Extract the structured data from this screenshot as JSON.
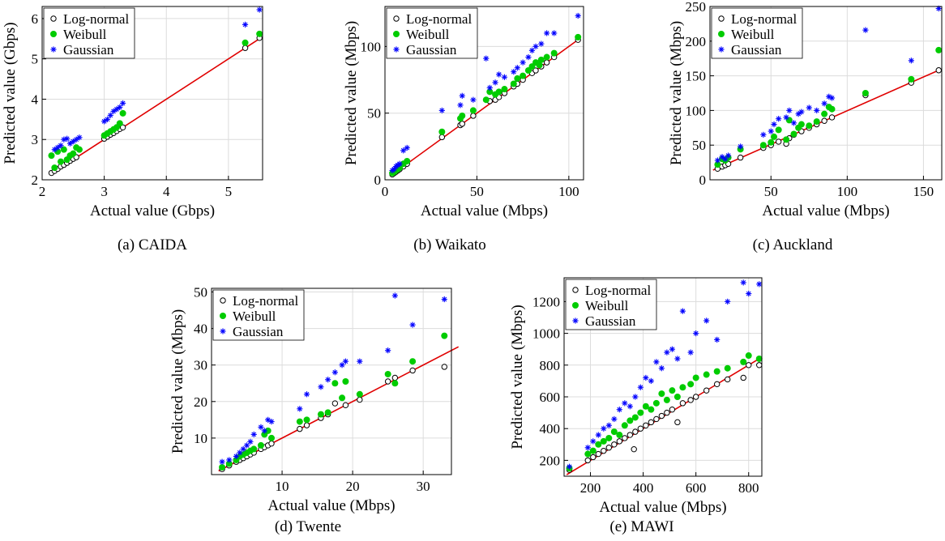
{
  "chart_data": [
    {
      "type": "scatter",
      "caption": "(a) CAIDA",
      "xlabel": "Actual value (Gbps)",
      "ylabel": "Predicted value (Gbps)",
      "xlim": [
        2,
        5.55
      ],
      "ylim": [
        2,
        6.3
      ],
      "xticks": [
        2,
        3,
        4,
        5
      ],
      "yticks": [
        2,
        3,
        4,
        5,
        6
      ],
      "grid": true,
      "legend_position": "top-left",
      "fit_line": [
        [
          2.15,
          2.15
        ],
        [
          5.5,
          5.5
        ]
      ],
      "series": [
        {
          "name": "Log-normal",
          "marker": "circle-open",
          "color": "#000000",
          "x": [
            2.15,
            2.2,
            2.25,
            2.3,
            2.35,
            2.4,
            2.45,
            2.5,
            2.55,
            3.0,
            3.05,
            3.1,
            3.15,
            3.2,
            3.25,
            3.3,
            5.27,
            5.5
          ],
          "y": [
            2.17,
            2.22,
            2.27,
            2.33,
            2.37,
            2.42,
            2.47,
            2.52,
            2.56,
            3.02,
            3.07,
            3.12,
            3.16,
            3.21,
            3.26,
            3.3,
            5.27,
            5.52
          ]
        },
        {
          "name": "Weibull",
          "marker": "circle-filled",
          "color": "#00cc00",
          "x": [
            2.15,
            2.2,
            2.25,
            2.3,
            2.35,
            2.4,
            2.45,
            2.5,
            2.55,
            2.6,
            3.0,
            3.05,
            3.1,
            3.15,
            3.2,
            3.25,
            3.3,
            5.27,
            5.5
          ],
          "y": [
            2.6,
            2.3,
            2.7,
            2.45,
            2.75,
            2.5,
            2.6,
            2.65,
            2.8,
            2.75,
            3.1,
            3.15,
            3.2,
            3.25,
            3.3,
            3.4,
            3.65,
            5.4,
            5.62
          ]
        },
        {
          "name": "Gaussian",
          "marker": "asterisk",
          "color": "#0000ff",
          "x": [
            2.2,
            2.25,
            2.3,
            2.35,
            2.4,
            2.45,
            2.5,
            2.55,
            2.6,
            3.0,
            3.05,
            3.1,
            3.15,
            3.2,
            3.25,
            3.3,
            5.27,
            5.5
          ],
          "y": [
            2.75,
            2.8,
            2.85,
            3.0,
            3.02,
            2.9,
            2.95,
            3.0,
            3.05,
            3.45,
            3.5,
            3.6,
            3.7,
            3.75,
            3.8,
            3.9,
            5.85,
            6.22
          ]
        }
      ]
    },
    {
      "type": "scatter",
      "caption": "(b) Waikato",
      "xlabel": "Actual value (Mbps)",
      "ylabel": "Predicted value (Mbps)",
      "xlim": [
        0,
        108
      ],
      "ylim": [
        0,
        130
      ],
      "xticks": [
        0,
        50,
        100
      ],
      "yticks": [
        0,
        50,
        100
      ],
      "grid": true,
      "legend_position": "top-left",
      "fit_line": [
        [
          3,
          3
        ],
        [
          106,
          106
        ]
      ],
      "series": [
        {
          "name": "Log-normal",
          "marker": "circle-open",
          "color": "#000000",
          "x": [
            4,
            5,
            6,
            7,
            8,
            10,
            12,
            31,
            41,
            42,
            48,
            57,
            60,
            62,
            65,
            70,
            72,
            75,
            80,
            82,
            85,
            88,
            92,
            105
          ],
          "y": [
            4,
            5,
            6,
            7,
            8,
            10,
            12,
            32,
            41,
            42,
            48,
            59,
            60,
            62,
            65,
            70,
            72,
            75,
            80,
            82,
            85,
            88,
            92,
            105
          ]
        },
        {
          "name": "Weibull",
          "marker": "circle-filled",
          "color": "#00cc00",
          "x": [
            4,
            5,
            6,
            7,
            8,
            10,
            12,
            31,
            41,
            42,
            48,
            55,
            57,
            60,
            62,
            65,
            70,
            72,
            75,
            78,
            80,
            82,
            84,
            85,
            88,
            92,
            105
          ],
          "y": [
            5,
            6,
            7,
            8,
            9,
            12,
            14,
            36,
            46,
            48,
            52,
            60,
            66,
            64,
            66,
            68,
            72,
            76,
            78,
            82,
            85,
            88,
            86,
            90,
            92,
            95,
            107
          ]
        },
        {
          "name": "Gaussian",
          "marker": "asterisk",
          "color": "#0000ff",
          "x": [
            4,
            5,
            6,
            7,
            8,
            10,
            12,
            31,
            41,
            42,
            48,
            55,
            57,
            60,
            62,
            65,
            70,
            72,
            75,
            78,
            80,
            82,
            85,
            88,
            92,
            105
          ],
          "y": [
            7,
            8,
            10,
            11,
            12,
            22,
            24,
            52,
            56,
            63,
            60,
            91,
            69,
            73,
            79,
            77,
            81,
            84,
            88,
            92,
            97,
            100,
            102,
            110,
            110,
            123
          ]
        }
      ]
    },
    {
      "type": "scatter",
      "caption": "(c) Auckland",
      "xlabel": "Actual value (Mbps)",
      "ylabel": "Predicted value (Mbps)",
      "xlim": [
        10,
        162
      ],
      "ylim": [
        0,
        250
      ],
      "xticks": [
        50,
        100,
        150
      ],
      "yticks": [
        0,
        50,
        100,
        150,
        200,
        250
      ],
      "grid": true,
      "legend_position": "top-left",
      "fit_line": [
        [
          12,
          14
        ],
        [
          160,
          158
        ]
      ],
      "series": [
        {
          "name": "Log-normal",
          "marker": "circle-open",
          "color": "#000000",
          "x": [
            15,
            18,
            20,
            22,
            30,
            45,
            50,
            55,
            60,
            62,
            65,
            70,
            75,
            80,
            85,
            90,
            112,
            142,
            160
          ],
          "y": [
            16,
            19,
            21,
            23,
            32,
            46,
            50,
            55,
            52,
            60,
            65,
            70,
            75,
            80,
            85,
            90,
            122,
            140,
            158
          ]
        },
        {
          "name": "Weibull",
          "marker": "circle-filled",
          "color": "#00cc00",
          "x": [
            15,
            18,
            20,
            22,
            30,
            45,
            50,
            52,
            55,
            60,
            62,
            65,
            68,
            70,
            75,
            80,
            85,
            88,
            90,
            112,
            142,
            160
          ],
          "y": [
            22,
            30,
            28,
            32,
            44,
            50,
            54,
            62,
            72,
            58,
            86,
            66,
            75,
            80,
            78,
            84,
            95,
            105,
            102,
            125,
            145,
            187
          ]
        },
        {
          "name": "Gaussian",
          "marker": "asterisk",
          "color": "#0000ff",
          "x": [
            15,
            18,
            20,
            22,
            30,
            45,
            50,
            52,
            55,
            60,
            62,
            65,
            68,
            70,
            75,
            80,
            85,
            88,
            90,
            112,
            142,
            160
          ],
          "y": [
            28,
            33,
            30,
            35,
            48,
            65,
            70,
            80,
            88,
            90,
            100,
            82,
            95,
            98,
            104,
            100,
            110,
            120,
            118,
            216,
            172,
            247
          ]
        }
      ]
    },
    {
      "type": "scatter",
      "caption": "(d) Twente",
      "xlabel": "Actual value (Mbps)",
      "ylabel": "Predicted value (Mbps)",
      "xlim": [
        0,
        34
      ],
      "ylim": [
        0,
        51
      ],
      "xticks": [
        10,
        20,
        30
      ],
      "yticks": [
        10,
        20,
        30,
        40,
        50
      ],
      "grid": true,
      "legend_position": "top-left",
      "fit_line": [
        [
          1,
          1
        ],
        [
          35,
          35
        ]
      ],
      "series": [
        {
          "name": "Log-normal",
          "marker": "circle-open",
          "color": "#000000",
          "x": [
            1.5,
            2.5,
            3.5,
            4,
            4.5,
            5,
            5.5,
            6,
            7,
            7.5,
            8,
            8.5,
            12.5,
            13.5,
            15.5,
            16.5,
            17.5,
            19,
            21,
            25,
            26,
            28.5,
            33
          ],
          "y": [
            1.5,
            2.5,
            3.5,
            4,
            4.5,
            5,
            5.5,
            6,
            7,
            7.5,
            8,
            8.5,
            12.5,
            13.5,
            15.5,
            16.5,
            19.5,
            19,
            20.5,
            25.5,
            26.5,
            28.5,
            29.5
          ]
        },
        {
          "name": "Weibull",
          "marker": "circle-filled",
          "color": "#00cc00",
          "x": [
            1.5,
            2.5,
            3.5,
            4,
            4.5,
            5,
            5.5,
            6,
            7,
            7.5,
            8,
            8.5,
            12.5,
            13.5,
            15.5,
            16.5,
            17.5,
            18.5,
            19,
            21,
            25,
            26,
            28.5,
            33
          ],
          "y": [
            2,
            3,
            4,
            5,
            5.5,
            6,
            6.5,
            7,
            8,
            11,
            12,
            10,
            14.5,
            15,
            16.5,
            17,
            25,
            21,
            25.5,
            22,
            27.5,
            25,
            31,
            38
          ]
        },
        {
          "name": "Gaussian",
          "marker": "asterisk",
          "color": "#0000ff",
          "x": [
            1.5,
            2.5,
            3.5,
            4,
            4.5,
            5,
            5.5,
            6,
            7,
            7.5,
            8,
            8.5,
            12.5,
            13.5,
            15.5,
            16.5,
            17.5,
            18.5,
            19,
            21,
            25,
            26,
            28.5,
            33
          ],
          "y": [
            3.5,
            4,
            5,
            6,
            7,
            8,
            9,
            11,
            13,
            12,
            15,
            14.5,
            18,
            22,
            24,
            26,
            28,
            30,
            31,
            31,
            34,
            49,
            41,
            48
          ]
        }
      ]
    },
    {
      "type": "scatter",
      "caption": "(e) MAWI",
      "xlabel": "Actual value (Mbps)",
      "ylabel": "Predicted value (Mbps)",
      "xlim": [
        100,
        850
      ],
      "ylim": [
        100,
        1350
      ],
      "xticks": [
        200,
        400,
        600,
        800
      ],
      "yticks": [
        200,
        400,
        600,
        800,
        1000,
        1200
      ],
      "grid": true,
      "legend_position": "top-left",
      "fit_line": [
        [
          110,
          110
        ],
        [
          840,
          840
        ]
      ],
      "series": [
        {
          "name": "Log-normal",
          "marker": "circle-open",
          "color": "#000000",
          "x": [
            120,
            190,
            210,
            230,
            250,
            270,
            290,
            310,
            330,
            350,
            365,
            370,
            390,
            410,
            430,
            450,
            470,
            490,
            510,
            530,
            550,
            580,
            600,
            640,
            680,
            720,
            780,
            800,
            840
          ],
          "y": [
            140,
            200,
            220,
            240,
            260,
            280,
            300,
            320,
            340,
            360,
            270,
            380,
            400,
            420,
            440,
            460,
            480,
            500,
            520,
            440,
            560,
            580,
            600,
            640,
            680,
            710,
            720,
            800,
            800
          ]
        },
        {
          "name": "Weibull",
          "marker": "circle-filled",
          "color": "#00cc00",
          "x": [
            120,
            190,
            210,
            230,
            250,
            270,
            290,
            310,
            330,
            350,
            370,
            390,
            410,
            430,
            450,
            470,
            490,
            510,
            530,
            550,
            580,
            600,
            640,
            680,
            720,
            780,
            800,
            840
          ],
          "y": [
            150,
            240,
            260,
            300,
            320,
            340,
            380,
            360,
            420,
            450,
            470,
            500,
            540,
            520,
            560,
            620,
            580,
            640,
            600,
            660,
            680,
            720,
            740,
            760,
            780,
            820,
            860,
            840
          ]
        },
        {
          "name": "Gaussian",
          "marker": "asterisk",
          "color": "#0000ff",
          "x": [
            120,
            190,
            210,
            230,
            250,
            270,
            290,
            310,
            330,
            350,
            370,
            390,
            410,
            430,
            450,
            470,
            490,
            510,
            530,
            550,
            580,
            600,
            640,
            680,
            720,
            780,
            800,
            840
          ],
          "y": [
            160,
            280,
            320,
            360,
            400,
            420,
            460,
            520,
            560,
            540,
            600,
            660,
            720,
            700,
            820,
            780,
            880,
            900,
            840,
            1140,
            880,
            1000,
            1080,
            960,
            1200,
            1320,
            1250,
            1310
          ]
        }
      ]
    }
  ]
}
